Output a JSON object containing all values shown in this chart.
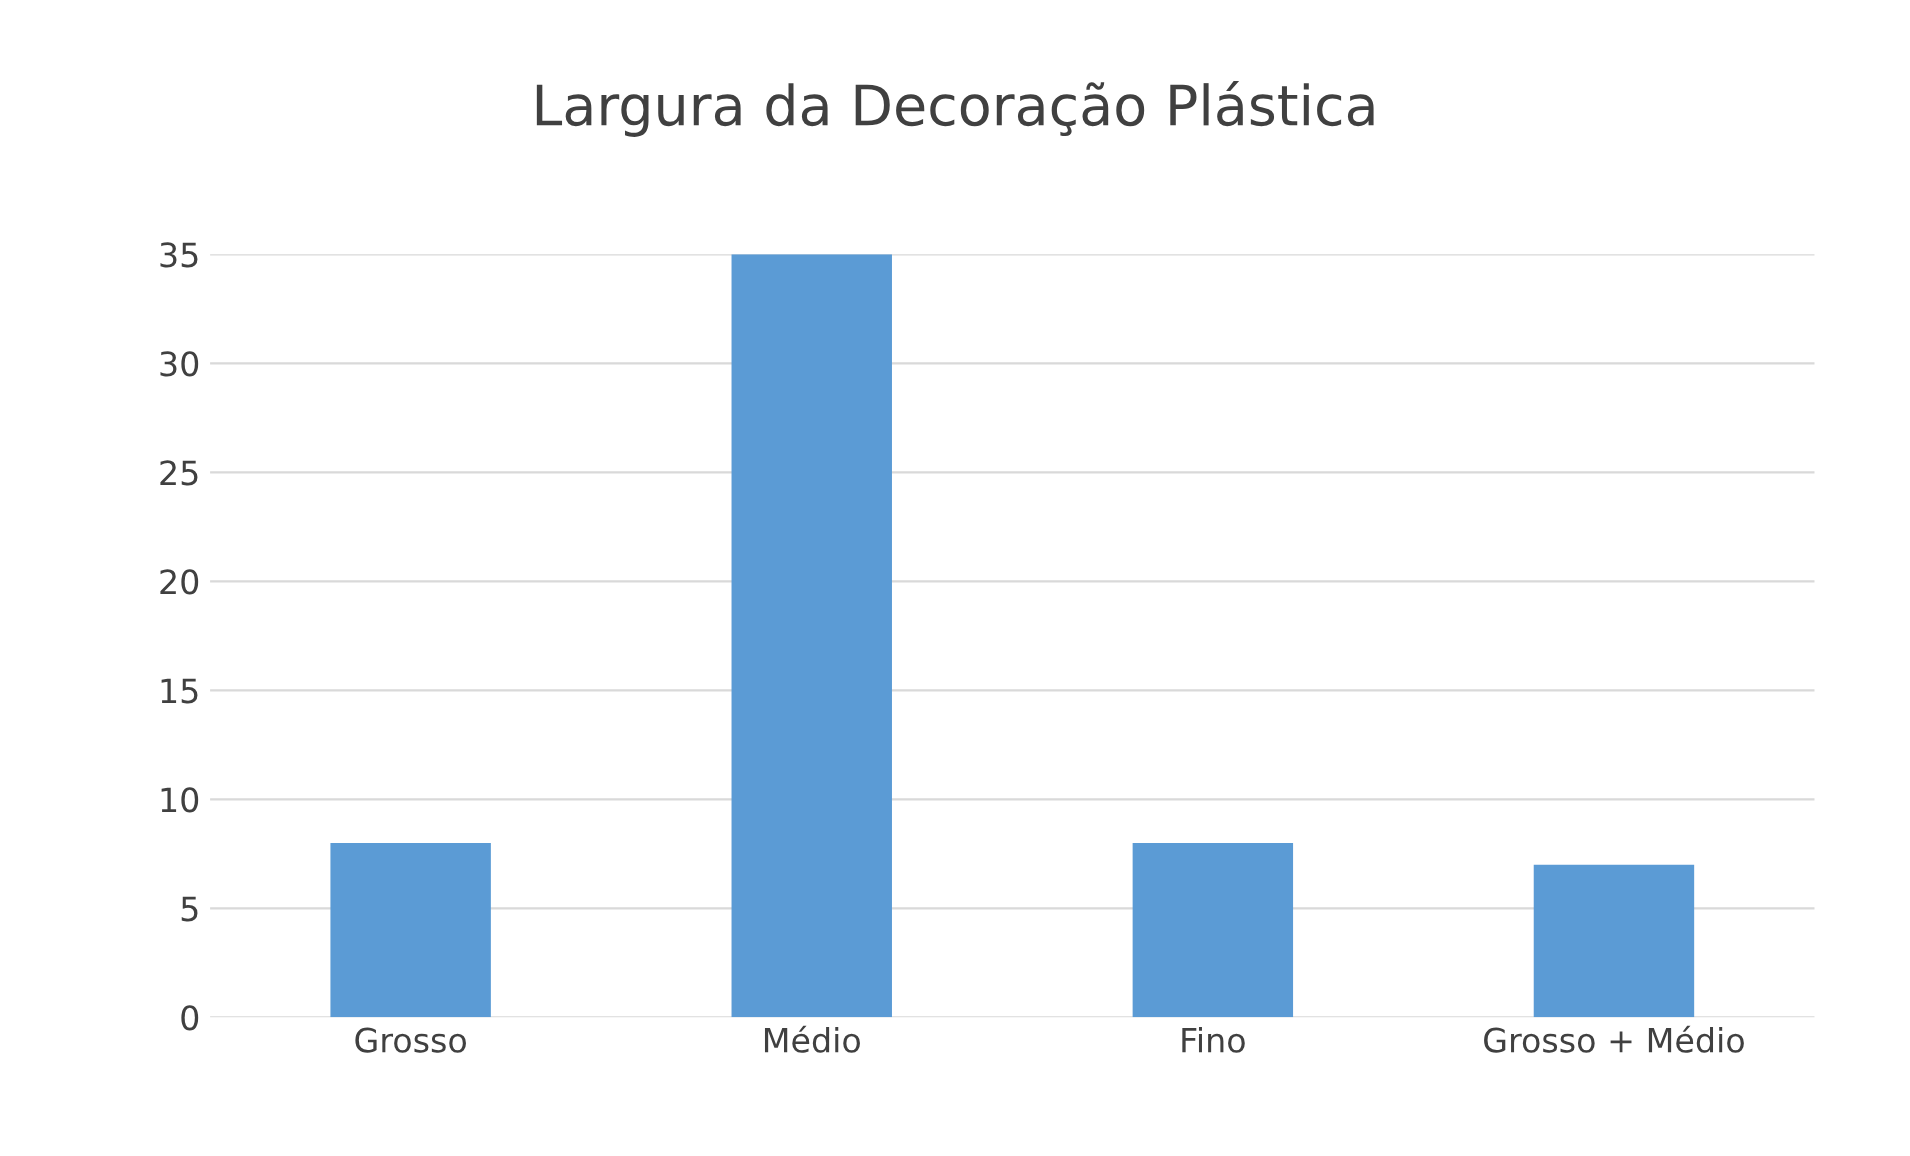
{
  "chart_data": {
    "type": "bar",
    "title": "Largura da Decoração Plástica",
    "categories": [
      "Grosso",
      "Médio",
      "Fino",
      "Grosso + Médio"
    ],
    "values": [
      8,
      35,
      8,
      7
    ],
    "color": "#5b9bd5",
    "ylim": [
      0,
      35
    ],
    "yticks": [
      0,
      5,
      10,
      15,
      20,
      25,
      30,
      35
    ],
    "grid": "y",
    "legend": false
  }
}
